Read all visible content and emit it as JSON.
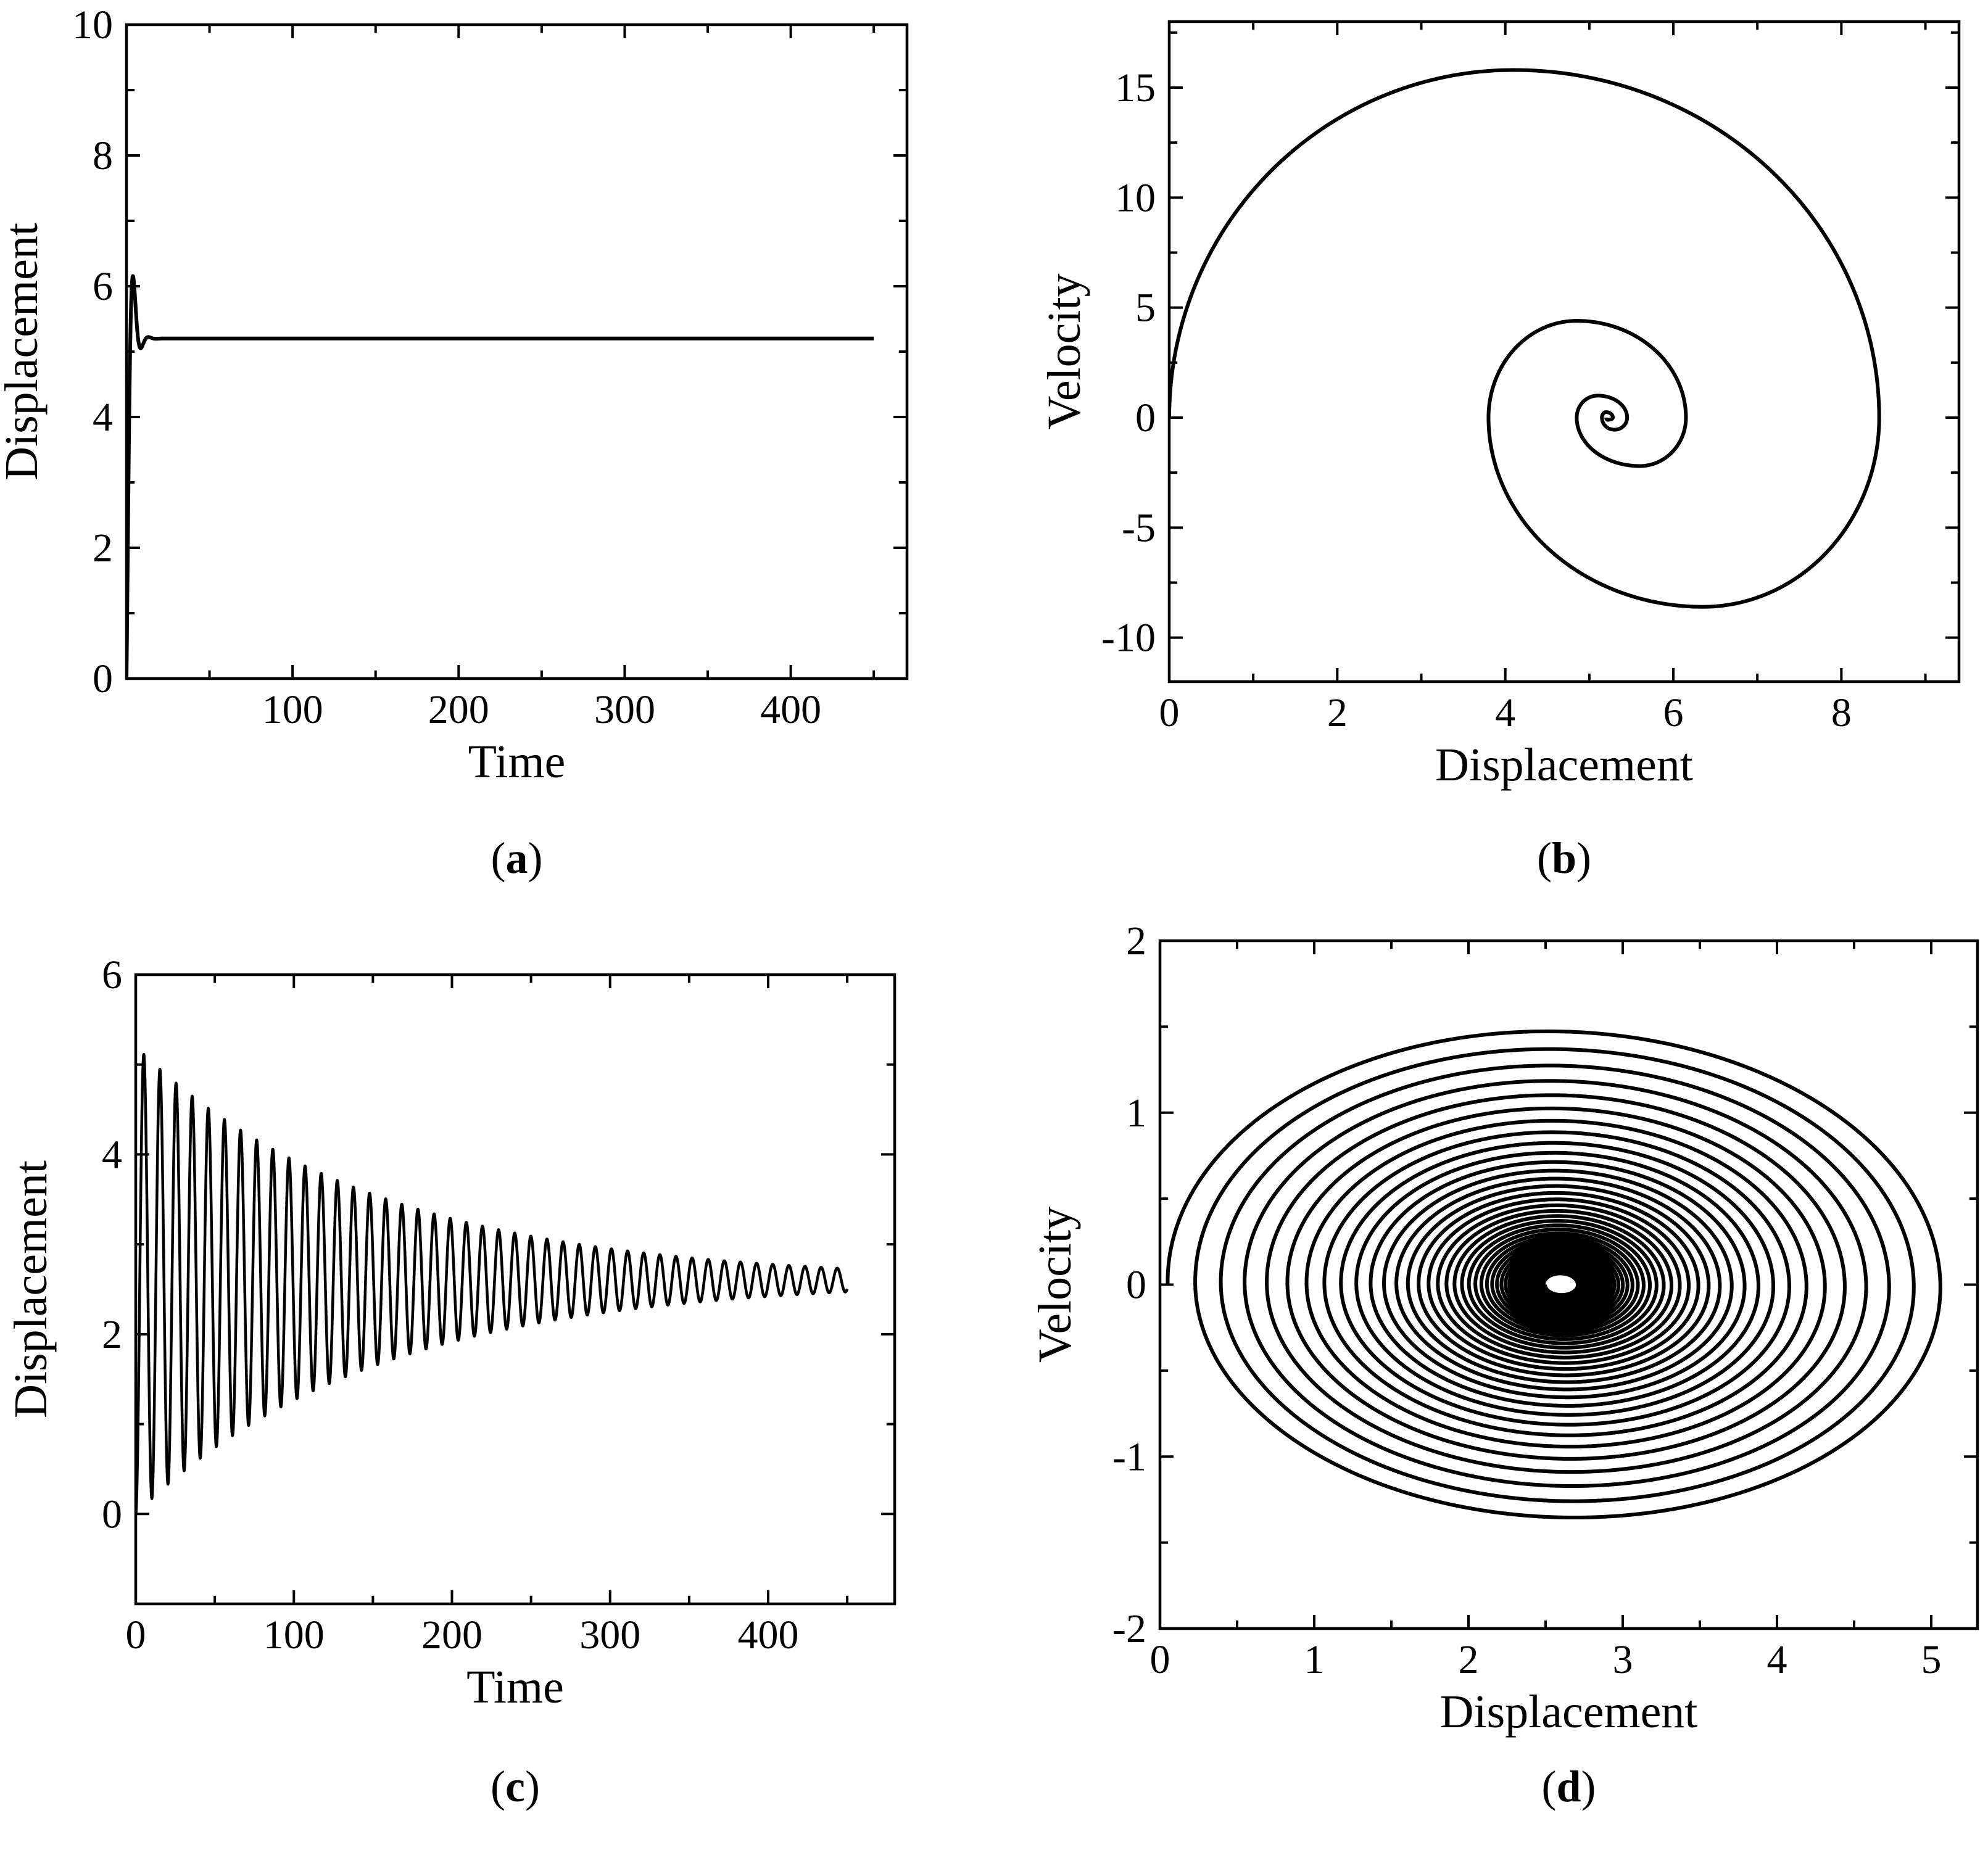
{
  "figure": {
    "panels": [
      {
        "id": "a",
        "label_open": "(",
        "label_letter": "a",
        "label_close": ")"
      },
      {
        "id": "b",
        "label_open": "(",
        "label_letter": "b",
        "label_close": ")"
      },
      {
        "id": "c",
        "label_open": "(",
        "label_letter": "c",
        "label_close": ")"
      },
      {
        "id": "d",
        "label_open": "(",
        "label_letter": "d",
        "label_close": ")"
      }
    ]
  },
  "chart_data": [
    {
      "panel": "a",
      "type": "line",
      "title": "",
      "xlabel": "Time",
      "ylabel": "Displacement",
      "xlim": [
        0,
        470
      ],
      "ylim": [
        0,
        10
      ],
      "xticks": [
        100,
        200,
        300,
        400
      ],
      "yticks": [
        0,
        2,
        4,
        6,
        8,
        10
      ],
      "grid": false,
      "legend": "none",
      "series": [
        {
          "model": "damped_sine",
          "equilibrium": 5.2,
          "initial_offset": -5.2,
          "period": 9.3,
          "decay_time": 2.5,
          "t_start": 0,
          "t_end": 450,
          "samples": 9000
        }
      ],
      "color": "#000000"
    },
    {
      "panel": "b",
      "type": "line",
      "title": "",
      "xlabel": "Displacement",
      "ylabel": "Velocity",
      "xlim": [
        0,
        9.4
      ],
      "ylim": [
        -12,
        18
      ],
      "xticks": [
        0,
        2,
        4,
        6,
        8
      ],
      "yticks": [
        -10,
        -5,
        0,
        5,
        10,
        15
      ],
      "grid": false,
      "legend": "none",
      "series": [
        {
          "model": "phase_spiral",
          "start": [
            0,
            0
          ],
          "center": [
            5.2,
            0
          ],
          "turns": 5,
          "samples": 4000,
          "anchors": [
            {
              "label": "top",
              "x": 4.1,
              "y": 15.8
            },
            {
              "label": "right",
              "x": 8.45,
              "y": 0
            },
            {
              "label": "bottom",
              "x": 6.35,
              "y": -8.6
            },
            {
              "label": "left",
              "x": 3.8,
              "y": 0
            },
            {
              "label": "top2",
              "x": 4.85,
              "y": 4.4
            },
            {
              "label": "right2",
              "x": 6.15,
              "y": 0
            },
            {
              "label": "bottom2",
              "x": 5.6,
              "y": -2.2
            },
            {
              "label": "left2",
              "x": 4.85,
              "y": 0
            },
            {
              "label": "top3",
              "x": 5.1,
              "y": 1.0
            },
            {
              "label": "right3",
              "x": 5.45,
              "y": 0
            }
          ]
        }
      ],
      "color": "#000000"
    },
    {
      "panel": "c",
      "type": "line",
      "title": "",
      "xlabel": "Time",
      "ylabel": "Displacement",
      "xlim": [
        0,
        480
      ],
      "ylim": [
        -1,
        6
      ],
      "xticks": [
        0,
        100,
        200,
        300,
        400
      ],
      "yticks": [
        0,
        2,
        4,
        6
      ],
      "grid": false,
      "legend": "none",
      "series": [
        {
          "model": "damped_sine",
          "equilibrium": 2.6,
          "initial_offset": -2.6,
          "period": 10.2,
          "decay_time": 150,
          "t_start": 0,
          "t_end": 450,
          "samples": 9000
        }
      ],
      "color": "#000000"
    },
    {
      "panel": "d",
      "type": "line",
      "title": "",
      "xlabel": "Displacement",
      "ylabel": "Velocity",
      "xlim": [
        0,
        5.3
      ],
      "ylim": [
        -2,
        2
      ],
      "xticks": [
        0,
        1,
        2,
        3,
        4,
        5
      ],
      "yticks": [
        -2,
        -1,
        0,
        1,
        2
      ],
      "grid": false,
      "legend": "none",
      "series": [
        {
          "model": "phase_spiral_damped",
          "start": [
            0,
            0
          ],
          "center": [
            2.6,
            0
          ],
          "turns": 44,
          "outer_radius_x": 2.55,
          "outer_radius_y_top": 1.5,
          "outer_radius_y_bottom": 1.43,
          "decay_per_turn": 0.93,
          "samples": 14000
        }
      ],
      "color": "#000000"
    }
  ]
}
